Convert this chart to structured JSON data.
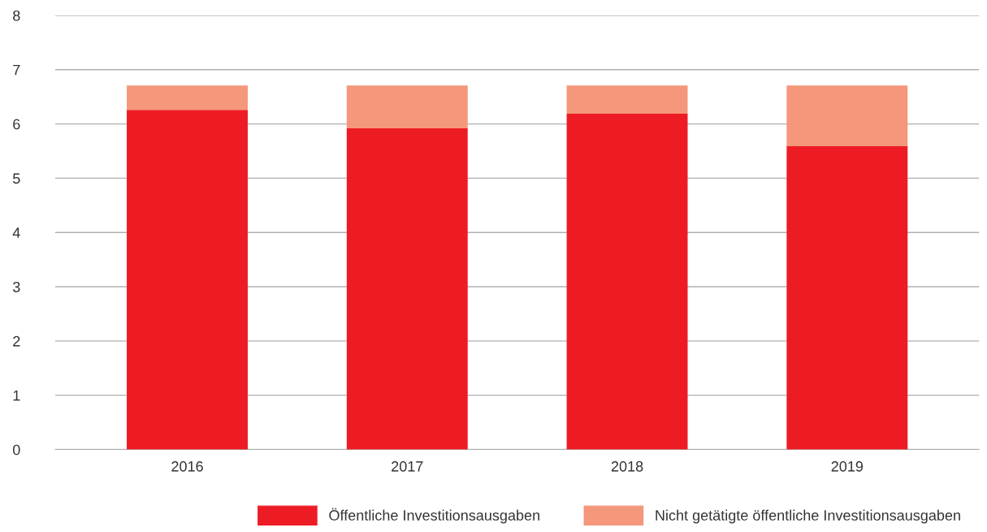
{
  "chart_data": {
    "type": "bar",
    "stacked": true,
    "categories": [
      "2016",
      "2017",
      "2018",
      "2019"
    ],
    "series": [
      {
        "name": "Öffentliche Investitionsausgaben",
        "color": "#ed1c24",
        "values": [
          6.26,
          5.92,
          6.19,
          5.59
        ]
      },
      {
        "name": "Nicht getätigte öffentliche Investitionsausgaben",
        "color": "#f4977a",
        "values": [
          0.45,
          0.79,
          0.52,
          1.12
        ]
      }
    ],
    "ylim": [
      0,
      8
    ],
    "yticks": [
      0,
      1,
      2,
      3,
      4,
      5,
      6,
      7,
      8
    ],
    "grid": "y",
    "legend": "bottom"
  }
}
